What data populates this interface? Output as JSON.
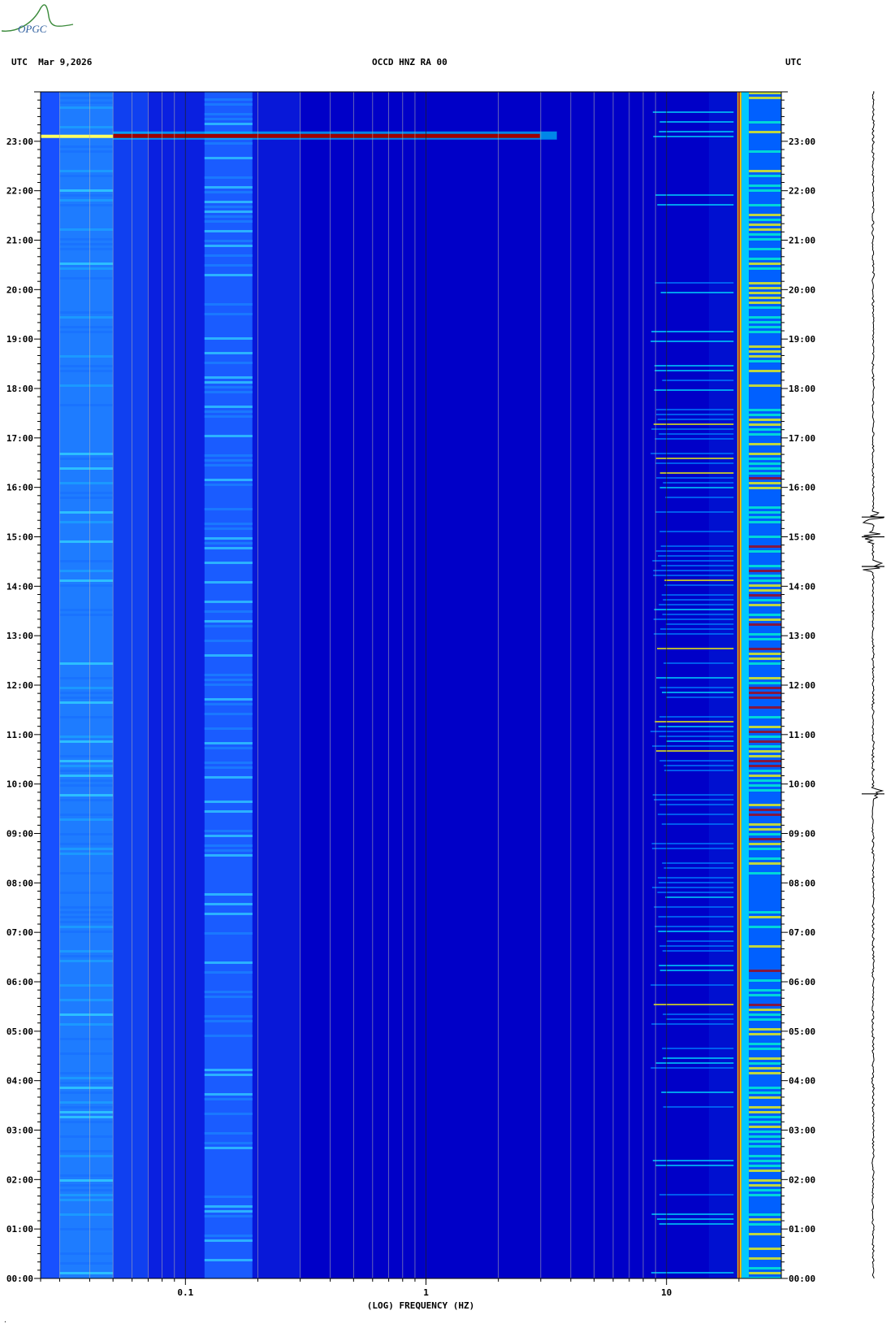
{
  "logo": {
    "text": "OPGC",
    "icon": "opgc-logo"
  },
  "header": {
    "left": "UTC  Mar 9,2026",
    "center": "OCCD HNZ RA 00",
    "right": "UTC"
  },
  "footer_mark": "·",
  "colors": {
    "background": "#0000c8",
    "low": "#1a3cff",
    "mid": "#00c8ff",
    "high": "#ffff00",
    "peak": "#a00000"
  },
  "chart_data": {
    "type": "heatmap",
    "title": "OCCD HNZ RA 00",
    "xlabel": "(LOG) FREQUENCY (HZ)",
    "ylabel": "UTC",
    "x_scale": "log",
    "xlim": [
      0.025,
      30
    ],
    "ylim_hours": [
      0,
      24
    ],
    "x_tick_labels": [
      {
        "value": 0.1,
        "label": "0.1"
      },
      {
        "value": 1,
        "label": "1"
      },
      {
        "value": 10,
        "label": "10"
      }
    ],
    "y_tick_labels": [
      "00:00",
      "01:00",
      "02:00",
      "03:00",
      "04:00",
      "05:00",
      "06:00",
      "07:00",
      "08:00",
      "09:00",
      "10:00",
      "11:00",
      "12:00",
      "13:00",
      "14:00",
      "15:00",
      "16:00",
      "17:00",
      "18:00",
      "19:00",
      "20:00",
      "21:00",
      "22:00",
      "23:00"
    ],
    "grid_frequencies": [
      0.03,
      0.04,
      0.05,
      0.06,
      0.07,
      0.08,
      0.09,
      0.1,
      0.2,
      0.3,
      0.4,
      0.5,
      0.6,
      0.7,
      0.8,
      0.9,
      1,
      2,
      3,
      4,
      5,
      6,
      7,
      8,
      9,
      10,
      20
    ],
    "features": [
      {
        "name": "event",
        "hour": 23.1,
        "freq_from": 0.05,
        "freq_to": 3.5
      },
      {
        "name": "persistent-line",
        "freq": 20,
        "hour_from": 0,
        "hour_to": 24
      }
    ],
    "seismogram_events_hours": [
      15.4,
      15.0,
      14.4,
      9.8
    ]
  }
}
